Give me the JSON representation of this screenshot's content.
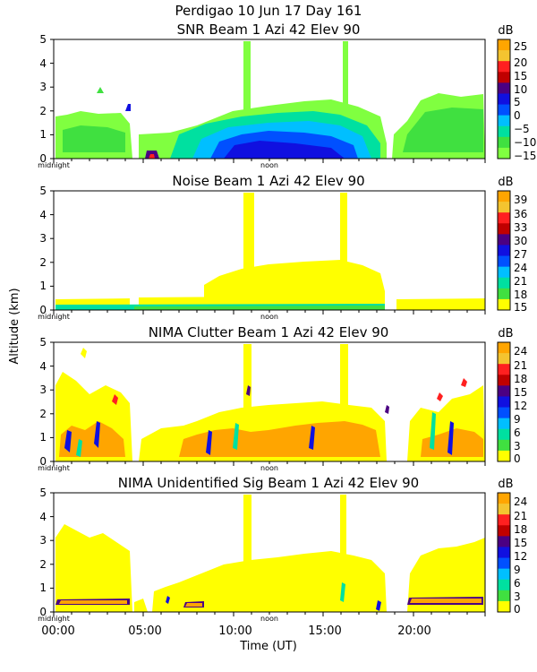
{
  "figure": {
    "title": "Perdigao   10 Jun 17 Day 161",
    "ylabel": "Altitude (km)",
    "xlabel": "Time (UT)",
    "x_tick_labels": [
      "00:00",
      "05:00",
      "10:00",
      "15:00",
      "20:00"
    ],
    "time_markers": [
      "midnight",
      "noon"
    ]
  },
  "chart_data": [
    {
      "type": "heatmap",
      "title": "SNR Beam 1 Azi  42 Elev 90",
      "ylim": [
        0,
        5
      ],
      "xlim": [
        0,
        24
      ],
      "y_ticks": [
        0,
        1,
        2,
        3,
        4,
        5
      ],
      "colorbar": {
        "unit": "dB",
        "ticks": [
          "25",
          "20",
          "15",
          "10",
          "5",
          "0",
          "−5",
          "−10",
          "−15"
        ],
        "colors": [
          "#FFA500",
          "#F4C430",
          "#FF2020",
          "#C00000",
          "#4B0082",
          "#1010E0",
          "#0050FF",
          "#00BFFF",
          "#00E0A0",
          "#40E040",
          "#80FF40"
        ]
      }
    },
    {
      "type": "heatmap",
      "title": "Noise Beam 1 Azi  42 Elev 90",
      "ylim": [
        0,
        5
      ],
      "xlim": [
        0,
        24
      ],
      "y_ticks": [
        0,
        1,
        2,
        3,
        4,
        5
      ],
      "colorbar": {
        "unit": "dB",
        "ticks": [
          "39",
          "36",
          "33",
          "30",
          "27",
          "24",
          "21",
          "18",
          "15"
        ],
        "colors": [
          "#FFA500",
          "#F4C430",
          "#FF2020",
          "#C00000",
          "#4B0082",
          "#1010E0",
          "#0050FF",
          "#00BFFF",
          "#00E0A0",
          "#40E040",
          "#FFFF00"
        ]
      }
    },
    {
      "type": "heatmap",
      "title": "NIMA Clutter Beam 1 Azi  42 Elev 90",
      "ylim": [
        0,
        5
      ],
      "xlim": [
        0,
        24
      ],
      "y_ticks": [
        0,
        1,
        2,
        3,
        4,
        5
      ],
      "colorbar": {
        "unit": "dB",
        "ticks": [
          "24",
          "21",
          "18",
          "15",
          "12",
          "9",
          "6",
          "3",
          "0"
        ],
        "colors": [
          "#FFA500",
          "#F4C430",
          "#FF2020",
          "#C00000",
          "#4B0082",
          "#1010E0",
          "#0050FF",
          "#00BFFF",
          "#00E0A0",
          "#40E040",
          "#FFFF00"
        ]
      }
    },
    {
      "type": "heatmap",
      "title": "NIMA Unidentified Sig Beam 1 Azi  42 Elev 90",
      "ylim": [
        0,
        5
      ],
      "xlim": [
        0,
        24
      ],
      "y_ticks": [
        0,
        1,
        2,
        3,
        4,
        5
      ],
      "colorbar": {
        "unit": "dB",
        "ticks": [
          "24",
          "21",
          "18",
          "15",
          "12",
          "9",
          "6",
          "3",
          "0"
        ],
        "colors": [
          "#FFA500",
          "#F4C430",
          "#FF2020",
          "#C00000",
          "#4B0082",
          "#1010E0",
          "#0050FF",
          "#00BFFF",
          "#00E0A0",
          "#40E040",
          "#FFFF00"
        ]
      }
    }
  ]
}
